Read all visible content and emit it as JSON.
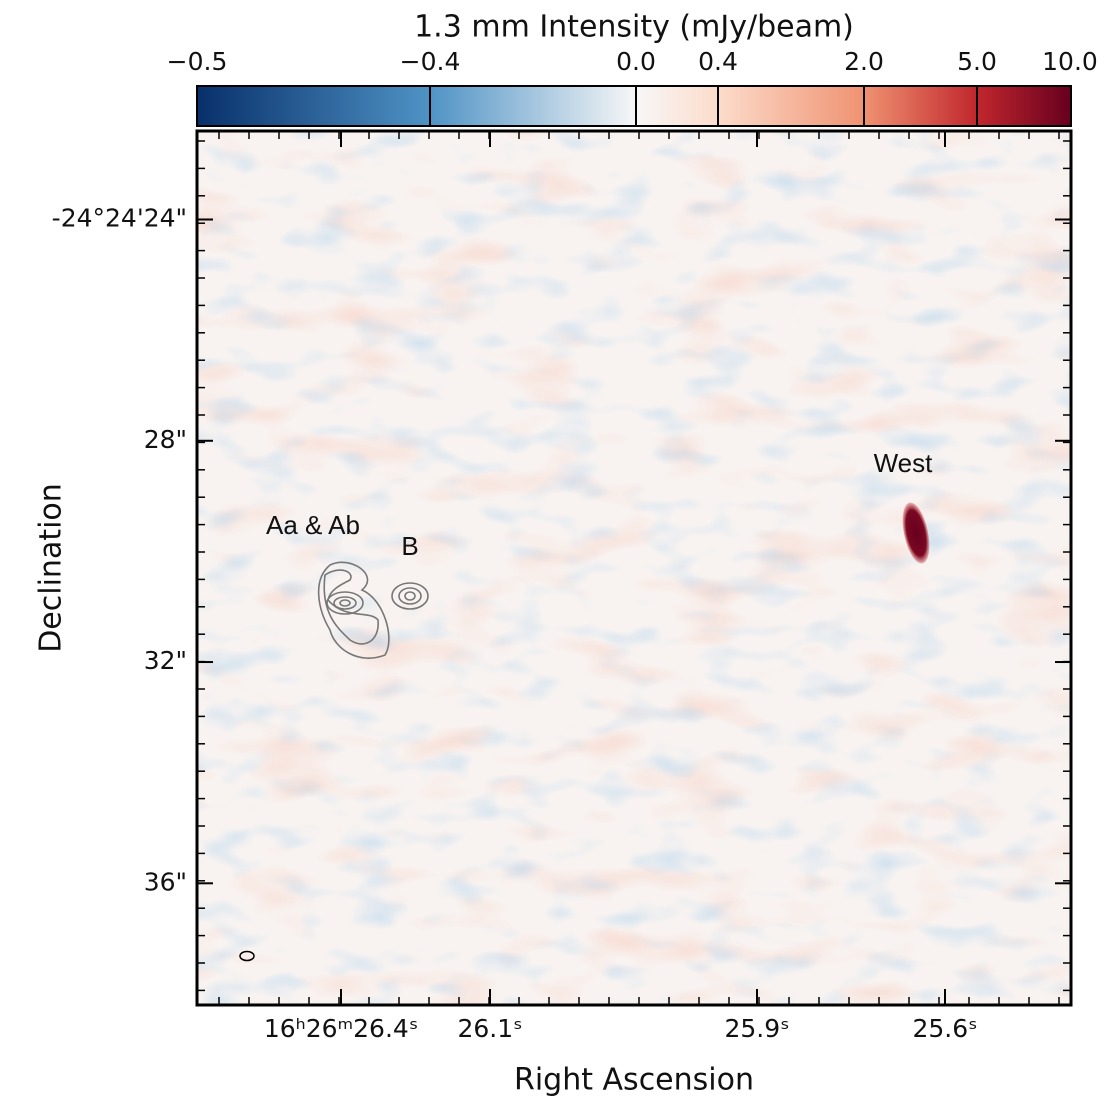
{
  "chart_data": {
    "type": "image",
    "colorbar_label": "1.3 mm Intensity (mJy/beam)",
    "x_label": "Right Ascension",
    "y_label": "Declination",
    "colorbar_ticks": [
      {
        "value": -0.5,
        "label": "−0.5"
      },
      {
        "value": -0.4,
        "label": "−0.4"
      },
      {
        "value": 0,
        "label": "0.0"
      },
      0.4,
      {
        "value": 2,
        "label": "2.0"
      },
      {
        "value": 5,
        "label": "5.0"
      },
      {
        "value": 10,
        "label": "10.0"
      }
    ],
    "colorbar_colors": [
      "#08306b",
      "#4f93c5",
      "#f7f7f7",
      "#fcdccb",
      "#ef9271",
      "#c1272d",
      "#67001f"
    ],
    "xticks": [
      {
        "value": 26.4,
        "label": "16ʰ26ᵐ26.4ˢ"
      },
      {
        "value": 26.1,
        "label": "26.1ˢ"
      },
      {
        "value": 25.9,
        "label": "25.9ˢ"
      },
      {
        "value": 25.6,
        "label": "25.6ˢ"
      }
    ],
    "ylim": [
      38.2,
      22.4
    ],
    "yticks": [
      {
        "value": 24,
        "label": "-24°24'24\""
      },
      {
        "value": 28,
        "label": "28\""
      },
      {
        "value": 32,
        "label": "32\""
      },
      {
        "value": 36,
        "label": "36\""
      }
    ],
    "annotations": [
      "Aa & Ab",
      "B",
      "West"
    ]
  }
}
